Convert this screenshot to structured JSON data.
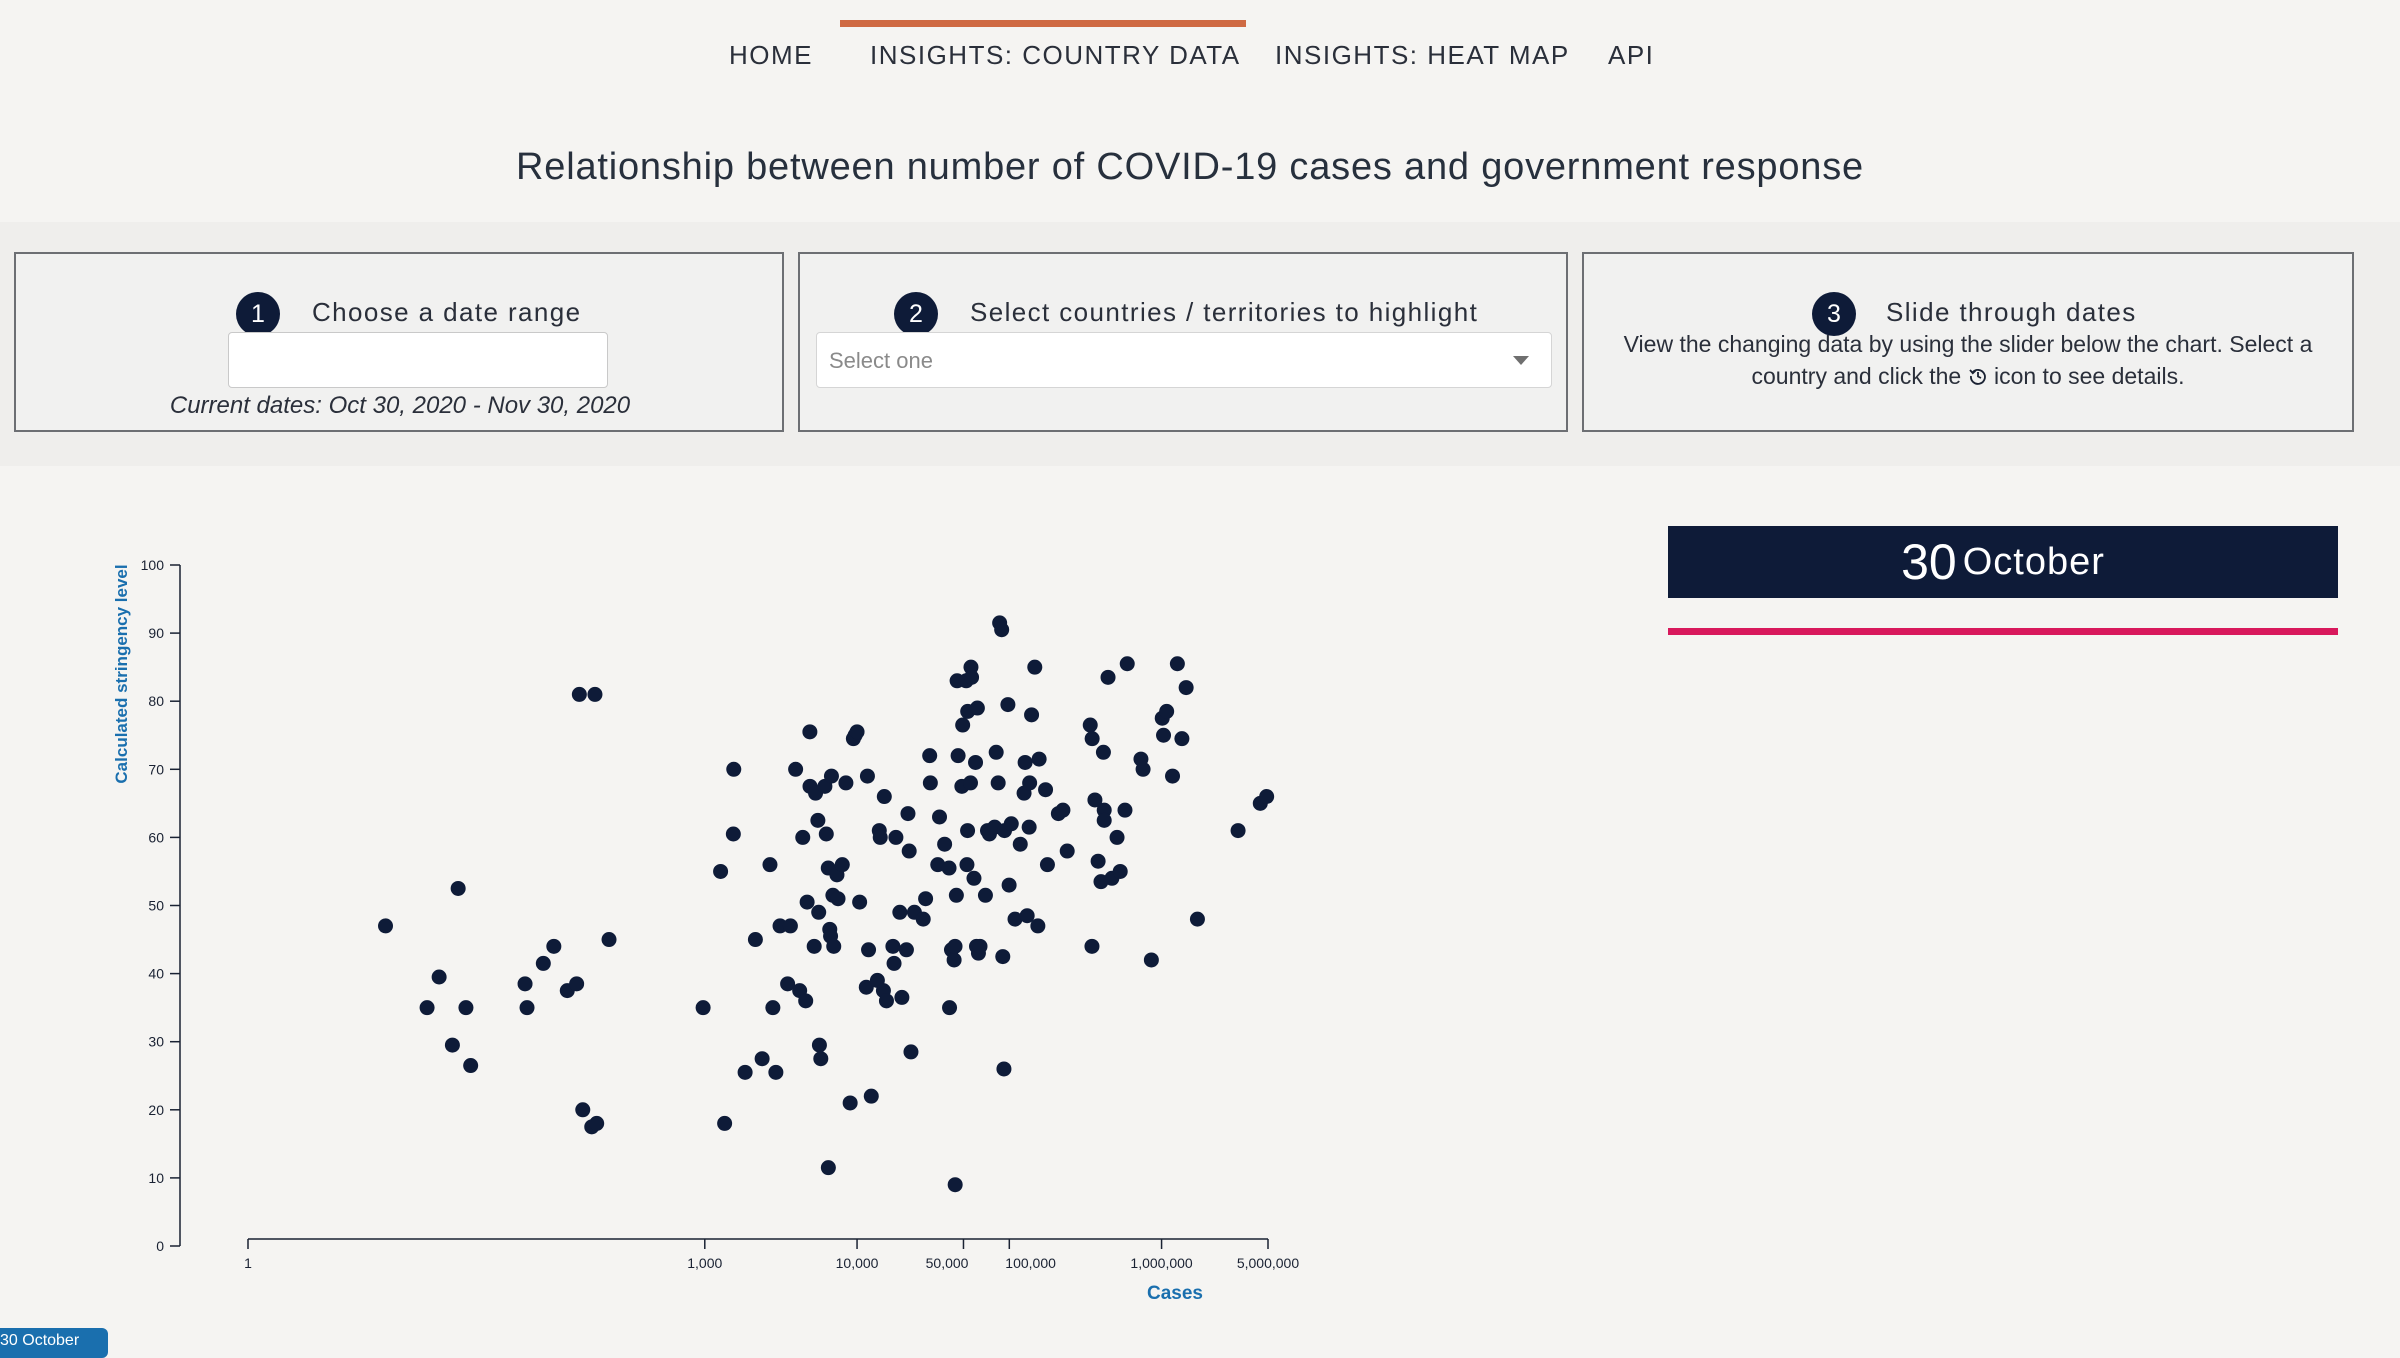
{
  "nav": {
    "items": [
      {
        "label": "HOME"
      },
      {
        "label": "INSIGHTS: COUNTRY DATA"
      },
      {
        "label": "INSIGHTS: HEAT MAP"
      },
      {
        "label": "API"
      }
    ],
    "active_index": 1,
    "active_color": "#cf6a43"
  },
  "page_title": "Relationship between number of COVID-19 cases and government response",
  "controls": {
    "step1": {
      "number": "1",
      "title": "Choose a date range",
      "input_value": "",
      "current_dates": "Current dates: Oct 30, 2020 - Nov 30, 2020"
    },
    "step2": {
      "number": "2",
      "title": "Select countries / territories to highlight",
      "placeholder": "Select one"
    },
    "step3": {
      "number": "3",
      "title": "Slide through dates",
      "desc_before": "View the changing data by using the slider below the chart. Select a country and click the",
      "desc_icon": "history-icon",
      "desc_after": "icon to see details."
    }
  },
  "date_display": {
    "day": "30",
    "month": "October",
    "underline_color": "#d8185c",
    "bg_color": "#0e1b38"
  },
  "slider": {
    "label": "30 October"
  },
  "chart_data": {
    "type": "scatter",
    "title": "",
    "xlabel": "Cases",
    "ylabel": "Calculated stringency level",
    "x_scale": "log",
    "xlim": [
      1,
      5000000
    ],
    "ylim": [
      0,
      100
    ],
    "x_ticks": [
      {
        "value": 1,
        "label": "1"
      },
      {
        "value": 1000,
        "label": "1,000"
      },
      {
        "value": 10000,
        "label": "10,000"
      },
      {
        "value": 50000,
        "label": "50,000"
      },
      {
        "value": 100000,
        "label": "100,000"
      },
      {
        "value": 1000000,
        "label": "1,000,000"
      },
      {
        "value": 5000000,
        "label": "5,000,000"
      }
    ],
    "y_ticks": [
      0,
      10,
      20,
      30,
      40,
      50,
      60,
      70,
      80,
      90,
      100
    ],
    "marker_color": "#0e1b38",
    "axis_label_color": "#1a6fae",
    "points": [
      [
        8,
        47
      ],
      [
        15,
        35
      ],
      [
        18,
        39.5
      ],
      [
        22,
        29.5
      ],
      [
        24,
        52.5
      ],
      [
        27,
        35
      ],
      [
        29,
        26.5
      ],
      [
        66,
        38.5
      ],
      [
        68,
        35
      ],
      [
        87,
        41.5
      ],
      [
        102,
        44
      ],
      [
        125,
        37.5
      ],
      [
        144,
        38.5
      ],
      [
        150,
        81
      ],
      [
        190,
        81
      ],
      [
        158,
        20
      ],
      [
        181,
        17.5
      ],
      [
        195,
        18
      ],
      [
        235,
        45
      ],
      [
        975,
        35
      ],
      [
        1270,
        55
      ],
      [
        1350,
        18
      ],
      [
        1540,
        60.5
      ],
      [
        1550,
        70
      ],
      [
        1840,
        25.5
      ],
      [
        2150,
        45
      ],
      [
        2380,
        27.5
      ],
      [
        2680,
        56
      ],
      [
        2800,
        35
      ],
      [
        2930,
        25.5
      ],
      [
        3120,
        47
      ],
      [
        3500,
        38.5
      ],
      [
        3650,
        47
      ],
      [
        3950,
        70
      ],
      [
        4200,
        37.5
      ],
      [
        4400,
        60
      ],
      [
        4600,
        36
      ],
      [
        4700,
        50.5
      ],
      [
        4900,
        75.5
      ],
      [
        4910,
        67.5
      ],
      [
        5230,
        44
      ],
      [
        5340,
        66.5
      ],
      [
        5530,
        62.5
      ],
      [
        5600,
        49
      ],
      [
        5660,
        29.5
      ],
      [
        5780,
        27.5
      ],
      [
        6150,
        67.5
      ],
      [
        6280,
        60.5
      ],
      [
        6470,
        55.5
      ],
      [
        6620,
        46.5
      ],
      [
        6480,
        11.5
      ],
      [
        6700,
        45.5
      ],
      [
        6790,
        69
      ],
      [
        6940,
        51.5
      ],
      [
        7030,
        44
      ],
      [
        7380,
        54.5
      ],
      [
        7500,
        51
      ],
      [
        8000,
        56
      ],
      [
        8450,
        68
      ],
      [
        9010,
        21
      ],
      [
        9460,
        74.5
      ],
      [
        9710,
        75
      ],
      [
        10000,
        75.5
      ],
      [
        10400,
        50.5
      ],
      [
        11500,
        38
      ],
      [
        11700,
        69
      ],
      [
        11900,
        43.5
      ],
      [
        12400,
        22
      ],
      [
        13600,
        39
      ],
      [
        14000,
        61
      ],
      [
        14200,
        60
      ],
      [
        14900,
        37.5
      ],
      [
        15100,
        66
      ],
      [
        15600,
        36
      ],
      [
        17200,
        44
      ],
      [
        17500,
        41.5
      ],
      [
        18000,
        60
      ],
      [
        19100,
        49
      ],
      [
        19700,
        36.5
      ],
      [
        21100,
        43.5
      ],
      [
        21600,
        63.5
      ],
      [
        22000,
        58
      ],
      [
        22600,
        28.5
      ],
      [
        23800,
        49
      ],
      [
        27200,
        48
      ],
      [
        28200,
        51
      ],
      [
        30000,
        72
      ],
      [
        30300,
        68
      ],
      [
        33900,
        56
      ],
      [
        34800,
        63
      ],
      [
        37600,
        59
      ],
      [
        40200,
        55.5
      ],
      [
        40500,
        35
      ],
      [
        41700,
        43.5
      ],
      [
        43400,
        42
      ],
      [
        44000,
        44
      ],
      [
        44900,
        51.5
      ],
      [
        45400,
        83
      ],
      [
        44100,
        9
      ],
      [
        46100,
        72
      ],
      [
        48800,
        67.5
      ],
      [
        49400,
        76.5
      ],
      [
        52100,
        83
      ],
      [
        52700,
        56
      ],
      [
        53200,
        61
      ],
      [
        53300,
        78.5
      ],
      [
        55600,
        68
      ],
      [
        56000,
        85
      ],
      [
        56500,
        83.5
      ],
      [
        58600,
        54
      ],
      [
        60000,
        71
      ],
      [
        60900,
        44
      ],
      [
        61700,
        79
      ],
      [
        62700,
        43
      ],
      [
        64200,
        44
      ],
      [
        69700,
        51.5
      ],
      [
        71900,
        61
      ],
      [
        74000,
        60.5
      ],
      [
        80100,
        61.5
      ],
      [
        82000,
        72.5
      ],
      [
        84500,
        68
      ],
      [
        86400,
        91.5
      ],
      [
        89100,
        90.5
      ],
      [
        90600,
        42.5
      ],
      [
        92200,
        26
      ],
      [
        93000,
        61
      ],
      [
        97900,
        79.5
      ],
      [
        99700,
        53
      ],
      [
        103000,
        62
      ],
      [
        109000,
        48
      ],
      [
        118000,
        59
      ],
      [
        125000,
        66.5
      ],
      [
        127000,
        71
      ],
      [
        131000,
        48.5
      ],
      [
        135000,
        61.5
      ],
      [
        136000,
        68
      ],
      [
        140000,
        78
      ],
      [
        147000,
        85
      ],
      [
        154000,
        47
      ],
      [
        157000,
        71.5
      ],
      [
        173000,
        67
      ],
      [
        178000,
        56
      ],
      [
        210000,
        63.5
      ],
      [
        225000,
        64
      ],
      [
        240000,
        58
      ],
      [
        340000,
        76.5
      ],
      [
        350000,
        74.5
      ],
      [
        349000,
        44
      ],
      [
        365000,
        65.5
      ],
      [
        383000,
        56.5
      ],
      [
        400000,
        53.5
      ],
      [
        415000,
        72.5
      ],
      [
        420000,
        64
      ],
      [
        420000,
        62.5
      ],
      [
        445000,
        83.5
      ],
      [
        472000,
        54
      ],
      [
        510000,
        60
      ],
      [
        535000,
        55
      ],
      [
        575000,
        64
      ],
      [
        595000,
        85.5
      ],
      [
        732000,
        71.5
      ],
      [
        756000,
        70
      ],
      [
        857000,
        42
      ],
      [
        1010000,
        77.5
      ],
      [
        1030000,
        75
      ],
      [
        1080000,
        78.5
      ],
      [
        1180000,
        69
      ],
      [
        1270000,
        85.5
      ],
      [
        1360000,
        74.5
      ],
      [
        1450000,
        82
      ],
      [
        1720000,
        48
      ],
      [
        3180000,
        61
      ],
      [
        4450000,
        65
      ],
      [
        4900000,
        66
      ]
    ]
  }
}
